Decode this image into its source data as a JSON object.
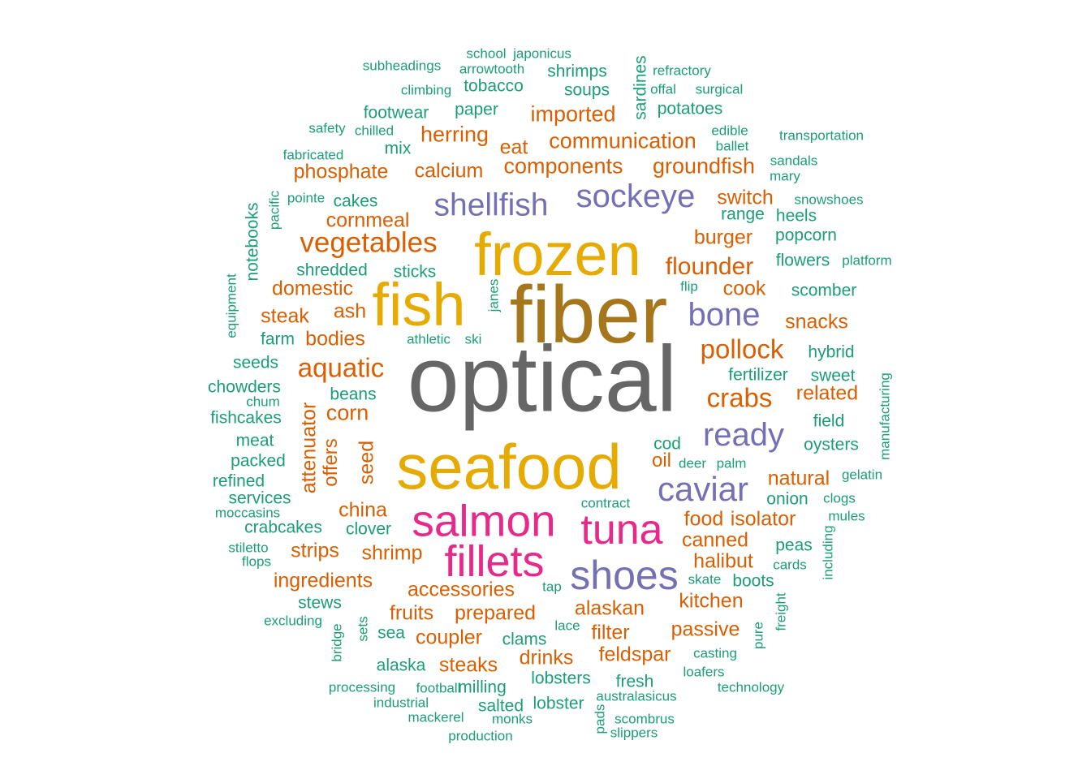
{
  "palette": {
    "grey": "#666666",
    "gold": "#E6AB02",
    "olive": "#A6761D",
    "magenta": "#E7298A",
    "purple": "#7570B3",
    "orange": "#D95F02",
    "teal": "#1B9E77"
  },
  "words": [
    {
      "text": "optical",
      "color": "grey"
    },
    {
      "text": "fiber",
      "color": "olive"
    },
    {
      "text": "frozen",
      "color": "gold"
    },
    {
      "text": "fish",
      "color": "gold"
    },
    {
      "text": "seafood",
      "color": "gold"
    },
    {
      "text": "salmon",
      "color": "magenta"
    },
    {
      "text": "fillets",
      "color": "magenta"
    },
    {
      "text": "tuna",
      "color": "magenta"
    },
    {
      "text": "shoes",
      "color": "purple"
    },
    {
      "text": "sockeye",
      "color": "purple"
    },
    {
      "text": "shellfish",
      "color": "purple"
    },
    {
      "text": "bone",
      "color": "purple"
    },
    {
      "text": "ready",
      "color": "purple"
    },
    {
      "text": "caviar",
      "color": "purple"
    },
    {
      "text": "vegetables",
      "color": "orange"
    },
    {
      "text": "aquatic",
      "color": "orange"
    },
    {
      "text": "pollock",
      "color": "orange"
    },
    {
      "text": "crabs",
      "color": "orange"
    },
    {
      "text": "flounder",
      "color": "orange"
    },
    {
      "text": "imported",
      "color": "orange"
    },
    {
      "text": "communication",
      "color": "orange"
    },
    {
      "text": "components",
      "color": "orange"
    },
    {
      "text": "groundfish",
      "color": "orange"
    },
    {
      "text": "herring",
      "color": "orange"
    },
    {
      "text": "eat",
      "color": "orange"
    },
    {
      "text": "calcium",
      "color": "orange"
    },
    {
      "text": "phosphate",
      "color": "orange"
    },
    {
      "text": "switch",
      "color": "orange"
    },
    {
      "text": "burger",
      "color": "orange"
    },
    {
      "text": "cornmeal",
      "color": "orange"
    },
    {
      "text": "domestic",
      "color": "orange"
    },
    {
      "text": "cook",
      "color": "orange"
    },
    {
      "text": "steak",
      "color": "orange"
    },
    {
      "text": "ash",
      "color": "orange"
    },
    {
      "text": "bodies",
      "color": "orange"
    },
    {
      "text": "snacks",
      "color": "orange"
    },
    {
      "text": "corn",
      "color": "orange"
    },
    {
      "text": "related",
      "color": "orange"
    },
    {
      "text": "attenuator",
      "color": "orange"
    },
    {
      "text": "seed",
      "color": "orange"
    },
    {
      "text": "offers",
      "color": "orange"
    },
    {
      "text": "oil",
      "color": "orange"
    },
    {
      "text": "natural",
      "color": "orange"
    },
    {
      "text": "china",
      "color": "orange"
    },
    {
      "text": "food",
      "color": "orange"
    },
    {
      "text": "isolator",
      "color": "orange"
    },
    {
      "text": "canned",
      "color": "orange"
    },
    {
      "text": "strips",
      "color": "orange"
    },
    {
      "text": "shrimp",
      "color": "orange"
    },
    {
      "text": "halibut",
      "color": "orange"
    },
    {
      "text": "ingredients",
      "color": "orange"
    },
    {
      "text": "accessories",
      "color": "orange"
    },
    {
      "text": "kitchen",
      "color": "orange"
    },
    {
      "text": "fruits",
      "color": "orange"
    },
    {
      "text": "prepared",
      "color": "orange"
    },
    {
      "text": "alaskan",
      "color": "orange"
    },
    {
      "text": "passive",
      "color": "orange"
    },
    {
      "text": "filter",
      "color": "orange"
    },
    {
      "text": "coupler",
      "color": "orange"
    },
    {
      "text": "feldspar",
      "color": "orange"
    },
    {
      "text": "drinks",
      "color": "orange"
    },
    {
      "text": "steaks",
      "color": "orange"
    },
    {
      "text": "subheadings",
      "color": "teal"
    },
    {
      "text": "school",
      "color": "teal"
    },
    {
      "text": "japonicus",
      "color": "teal"
    },
    {
      "text": "arrowtooth",
      "color": "teal"
    },
    {
      "text": "shrimps",
      "color": "teal"
    },
    {
      "text": "sardines",
      "color": "teal"
    },
    {
      "text": "refractory",
      "color": "teal"
    },
    {
      "text": "climbing",
      "color": "teal"
    },
    {
      "text": "tobacco",
      "color": "teal"
    },
    {
      "text": "soups",
      "color": "teal"
    },
    {
      "text": "offal",
      "color": "teal"
    },
    {
      "text": "surgical",
      "color": "teal"
    },
    {
      "text": "footwear",
      "color": "teal"
    },
    {
      "text": "paper",
      "color": "teal"
    },
    {
      "text": "potatoes",
      "color": "teal"
    },
    {
      "text": "safety",
      "color": "teal"
    },
    {
      "text": "chilled",
      "color": "teal"
    },
    {
      "text": "edible",
      "color": "teal"
    },
    {
      "text": "transportation",
      "color": "teal"
    },
    {
      "text": "ballet",
      "color": "teal"
    },
    {
      "text": "fabricated",
      "color": "teal"
    },
    {
      "text": "mix",
      "color": "teal"
    },
    {
      "text": "sandals",
      "color": "teal"
    },
    {
      "text": "mary",
      "color": "teal"
    },
    {
      "text": "pacific",
      "color": "teal"
    },
    {
      "text": "pointe",
      "color": "teal"
    },
    {
      "text": "cakes",
      "color": "teal"
    },
    {
      "text": "snowshoes",
      "color": "teal"
    },
    {
      "text": "range",
      "color": "teal"
    },
    {
      "text": "heels",
      "color": "teal"
    },
    {
      "text": "notebooks",
      "color": "teal"
    },
    {
      "text": "popcorn",
      "color": "teal"
    },
    {
      "text": "flowers",
      "color": "teal"
    },
    {
      "text": "platform",
      "color": "teal"
    },
    {
      "text": "shredded",
      "color": "teal"
    },
    {
      "text": "sticks",
      "color": "teal"
    },
    {
      "text": "equipment",
      "color": "teal"
    },
    {
      "text": "flip",
      "color": "teal"
    },
    {
      "text": "scomber",
      "color": "teal"
    },
    {
      "text": "janes",
      "color": "teal"
    },
    {
      "text": "farm",
      "color": "teal"
    },
    {
      "text": "athletic",
      "color": "teal"
    },
    {
      "text": "ski",
      "color": "teal"
    },
    {
      "text": "seeds",
      "color": "teal"
    },
    {
      "text": "hybrid",
      "color": "teal"
    },
    {
      "text": "fertilizer",
      "color": "teal"
    },
    {
      "text": "chowders",
      "color": "teal"
    },
    {
      "text": "sweet",
      "color": "teal"
    },
    {
      "text": "chum",
      "color": "teal"
    },
    {
      "text": "beans",
      "color": "teal"
    },
    {
      "text": "manufacturing",
      "color": "teal"
    },
    {
      "text": "fishcakes",
      "color": "teal"
    },
    {
      "text": "field",
      "color": "teal"
    },
    {
      "text": "meat",
      "color": "teal"
    },
    {
      "text": "cod",
      "color": "teal"
    },
    {
      "text": "oysters",
      "color": "teal"
    },
    {
      "text": "packed",
      "color": "teal"
    },
    {
      "text": "deer",
      "color": "teal"
    },
    {
      "text": "palm",
      "color": "teal"
    },
    {
      "text": "refined",
      "color": "teal"
    },
    {
      "text": "gelatin",
      "color": "teal"
    },
    {
      "text": "services",
      "color": "teal"
    },
    {
      "text": "onion",
      "color": "teal"
    },
    {
      "text": "clogs",
      "color": "teal"
    },
    {
      "text": "contract",
      "color": "teal"
    },
    {
      "text": "moccasins",
      "color": "teal"
    },
    {
      "text": "mules",
      "color": "teal"
    },
    {
      "text": "crabcakes",
      "color": "teal"
    },
    {
      "text": "clover",
      "color": "teal"
    },
    {
      "text": "peas",
      "color": "teal"
    },
    {
      "text": "stiletto",
      "color": "teal"
    },
    {
      "text": "including",
      "color": "teal"
    },
    {
      "text": "flops",
      "color": "teal"
    },
    {
      "text": "cards",
      "color": "teal"
    },
    {
      "text": "tap",
      "color": "teal"
    },
    {
      "text": "skate",
      "color": "teal"
    },
    {
      "text": "boots",
      "color": "teal"
    },
    {
      "text": "stews",
      "color": "teal"
    },
    {
      "text": "freight",
      "color": "teal"
    },
    {
      "text": "excluding",
      "color": "teal"
    },
    {
      "text": "sets",
      "color": "teal"
    },
    {
      "text": "lace",
      "color": "teal"
    },
    {
      "text": "bridge",
      "color": "teal"
    },
    {
      "text": "sea",
      "color": "teal"
    },
    {
      "text": "clams",
      "color": "teal"
    },
    {
      "text": "pure",
      "color": "teal"
    },
    {
      "text": "casting",
      "color": "teal"
    },
    {
      "text": "alaska",
      "color": "teal"
    },
    {
      "text": "loafers",
      "color": "teal"
    },
    {
      "text": "lobsters",
      "color": "teal"
    },
    {
      "text": "processing",
      "color": "teal"
    },
    {
      "text": "milling",
      "color": "teal"
    },
    {
      "text": "fresh",
      "color": "teal"
    },
    {
      "text": "technology",
      "color": "teal"
    },
    {
      "text": "football",
      "color": "teal"
    },
    {
      "text": "australasicus",
      "color": "teal"
    },
    {
      "text": "industrial",
      "color": "teal"
    },
    {
      "text": "salted",
      "color": "teal"
    },
    {
      "text": "lobster",
      "color": "teal"
    },
    {
      "text": "mackerel",
      "color": "teal"
    },
    {
      "text": "monks",
      "color": "teal"
    },
    {
      "text": "pads",
      "color": "teal"
    },
    {
      "text": "scombrus",
      "color": "teal"
    },
    {
      "text": "slippers",
      "color": "teal"
    },
    {
      "text": "production",
      "color": "teal"
    }
  ]
}
